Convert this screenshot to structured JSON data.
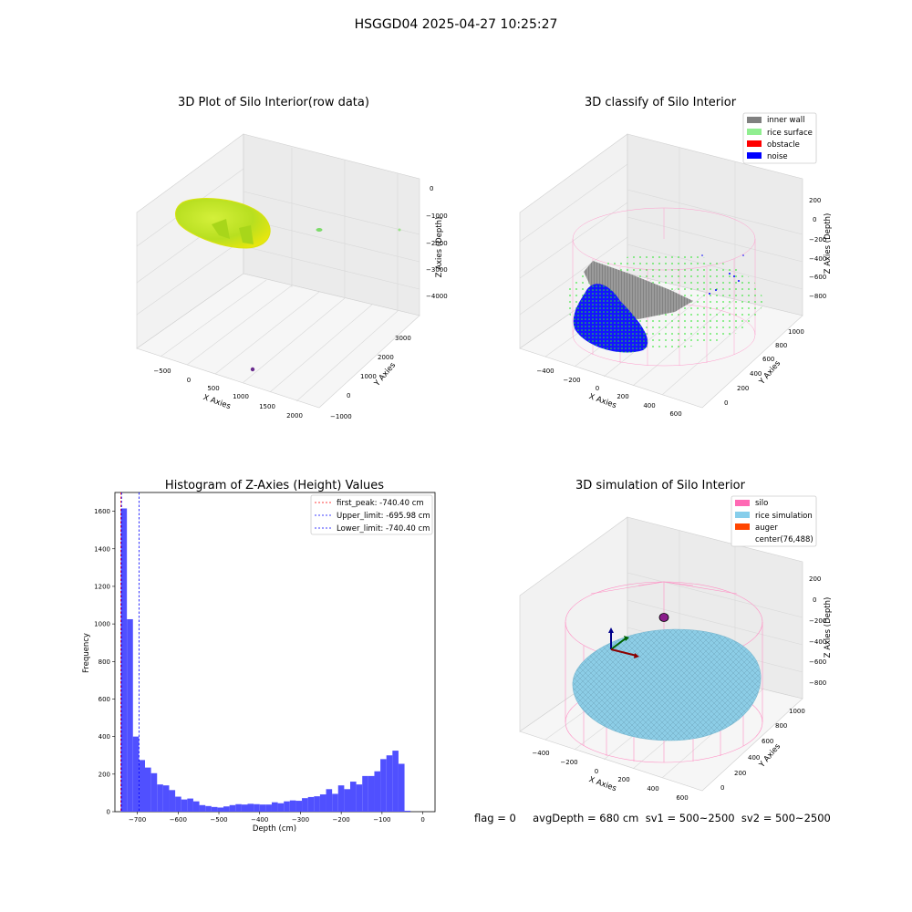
{
  "figure": {
    "title": "HSGGD04 2025-04-27 10:25:27",
    "footer": "flag = 0     avgDepth = 680 cm  sv1 = 500~2500  sv2 = 500~2500"
  },
  "colors": {
    "rice_raw": "#c8e61e",
    "inner_wall": "#808080",
    "rice_surface": "#90ee90",
    "obstacle": "#ff0000",
    "noise": "#0000ff",
    "silo": "#ff69b4",
    "rice_simulation": "#87ceeb",
    "auger": "#ff4500",
    "hist_bar": "#5050ff",
    "first_peak_line": "#ff0000",
    "limit_line": "#0000ff"
  },
  "plot_raw": {
    "title": "3D Plot of Silo Interior(row data)",
    "xlabel": "X Axies",
    "ylabel": "Y Axies",
    "zlabel": "Z Axies (Depth)",
    "xticks": [
      "−500",
      "0",
      "500",
      "1000",
      "1500",
      "2000"
    ],
    "yticks": [
      "−1000",
      "0",
      "1000",
      "2000",
      "3000"
    ],
    "zticks": [
      "0",
      "−1000",
      "−2000",
      "−3000",
      "−4000"
    ]
  },
  "plot_classify": {
    "title": "3D classify of Silo Interior",
    "xlabel": "X Axies",
    "ylabel": "Y Axies",
    "zlabel": "Z Axies (Depth)",
    "xticks": [
      "−400",
      "−200",
      "0",
      "200",
      "400",
      "600"
    ],
    "yticks": [
      "0",
      "200",
      "400",
      "600",
      "800",
      "1000"
    ],
    "zticks": [
      "200",
      "0",
      "−200",
      "−400",
      "−600",
      "−800"
    ],
    "legend": [
      "inner wall",
      "rice surface",
      "obstacle",
      "noise"
    ]
  },
  "plot_simulation": {
    "title": "3D simulation of Silo Interior",
    "xlabel": "X Axies",
    "ylabel": "Y Axies",
    "zlabel": "Z Axies (Depth)",
    "xticks": [
      "−400",
      "−200",
      "0",
      "200",
      "400",
      "600"
    ],
    "yticks": [
      "0",
      "200",
      "400",
      "600",
      "800",
      "1000"
    ],
    "zticks": [
      "200",
      "0",
      "−200",
      "−400",
      "−600",
      "−800"
    ],
    "legend": [
      "silo",
      "rice simulation",
      "auger",
      "center(76,488)"
    ]
  },
  "chart_data": {
    "type": "bar",
    "title": "Histogram of Z-Axies (Height) Values",
    "xlabel": "Depth (cm)",
    "ylabel": "Frequency",
    "xlim": [
      -755,
      30
    ],
    "ylim": [
      0,
      1700
    ],
    "xticks": [
      -700,
      -600,
      -500,
      -400,
      -300,
      -200,
      -100,
      0
    ],
    "xtick_labels": [
      "−700",
      "−600",
      "−500",
      "−400",
      "−300",
      "−200",
      "−100",
      "0"
    ],
    "yticks": [
      0,
      200,
      400,
      600,
      800,
      1000,
      1200,
      1400,
      1600
    ],
    "bin_start": -740.4,
    "bin_width": 14.8,
    "values": [
      1615,
      1025,
      400,
      275,
      235,
      205,
      145,
      140,
      115,
      80,
      65,
      70,
      55,
      35,
      30,
      25,
      22,
      28,
      35,
      40,
      38,
      42,
      40,
      38,
      38,
      50,
      45,
      55,
      60,
      58,
      72,
      78,
      82,
      92,
      120,
      95,
      140,
      120,
      160,
      145,
      190,
      190,
      215,
      280,
      300,
      325,
      255,
      5
    ],
    "vlines": [
      {
        "label": "first_peak: -740.40 cm",
        "x": -740.4,
        "style": "dashed",
        "color": "#ff0000"
      },
      {
        "label": "Upper_limit: -695.98 cm",
        "x": -695.98,
        "style": "dashed",
        "color": "#0000ff"
      },
      {
        "label": "Lower_limit: -740.40 cm",
        "x": -740.4,
        "style": "dashed",
        "color": "#0000ff"
      }
    ],
    "legend_position": "top-right"
  }
}
